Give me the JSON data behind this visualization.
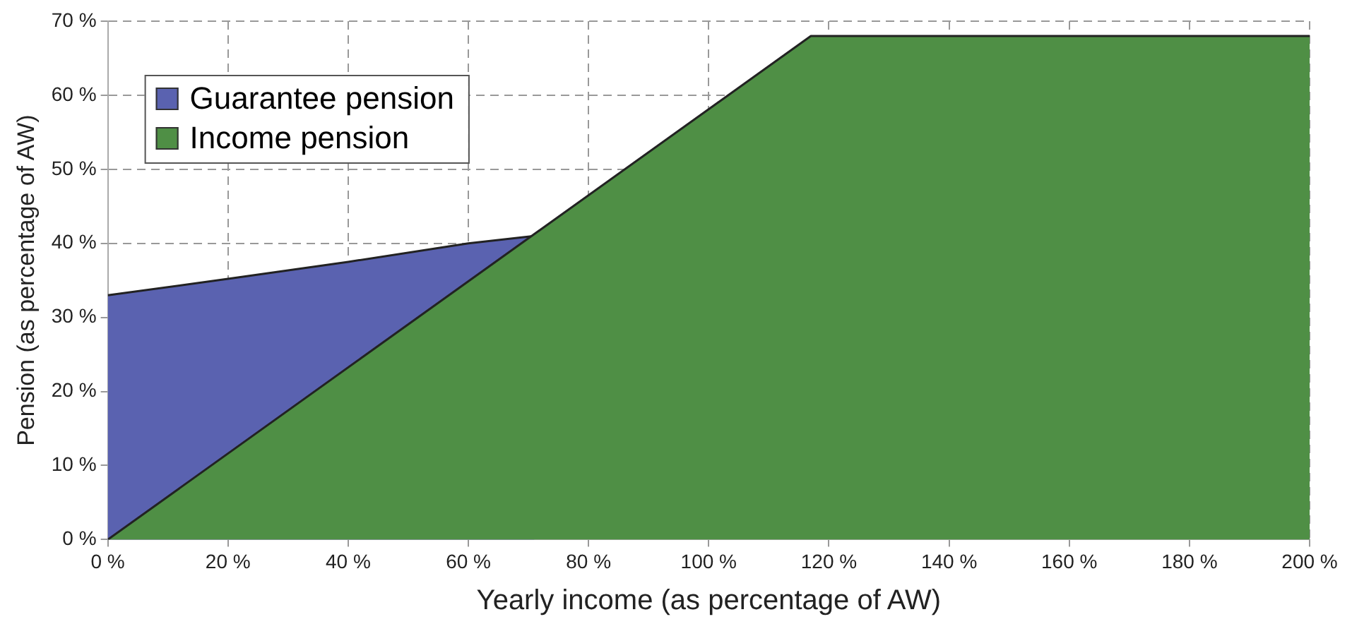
{
  "chart_data": {
    "type": "area",
    "xlabel": "Yearly income (as percentage of AW)",
    "ylabel": "Pension (as percentage of AW)",
    "series": [
      {
        "name": "Guarantee pension",
        "color": "#5a62b0",
        "x": [
          0,
          20,
          40,
          60,
          71
        ],
        "values": [
          33,
          35.2,
          37.5,
          40,
          41
        ]
      },
      {
        "name": "Income pension",
        "color": "#4f8f45",
        "x": [
          0,
          117,
          200
        ],
        "values": [
          0,
          68,
          68
        ]
      }
    ],
    "xlim": [
      0,
      200
    ],
    "xticks": [
      {
        "value": 0,
        "label": "0 %"
      },
      {
        "value": 20,
        "label": "20 %"
      },
      {
        "value": 40,
        "label": "40 %"
      },
      {
        "value": 60,
        "label": "60 %"
      },
      {
        "value": 80,
        "label": "80 %"
      },
      {
        "value": 100,
        "label": "100 %"
      },
      {
        "value": 120,
        "label": "120 %"
      },
      {
        "value": 140,
        "label": "140 %"
      },
      {
        "value": 160,
        "label": "160 %"
      },
      {
        "value": 180,
        "label": "180 %"
      },
      {
        "value": 200,
        "label": "200 %"
      }
    ],
    "ylim": [
      0,
      70
    ],
    "yticks": [
      {
        "value": 0,
        "label": "0 %"
      },
      {
        "value": 10,
        "label": "10 %"
      },
      {
        "value": 20,
        "label": "20 %"
      },
      {
        "value": 30,
        "label": "30 %"
      },
      {
        "value": 40,
        "label": "40 %"
      },
      {
        "value": 50,
        "label": "50 %"
      },
      {
        "value": 60,
        "label": "60 %"
      },
      {
        "value": 70,
        "label": "70 %"
      }
    ],
    "grid": true,
    "legend": "top left",
    "line_style": "solid",
    "marker": "none"
  }
}
